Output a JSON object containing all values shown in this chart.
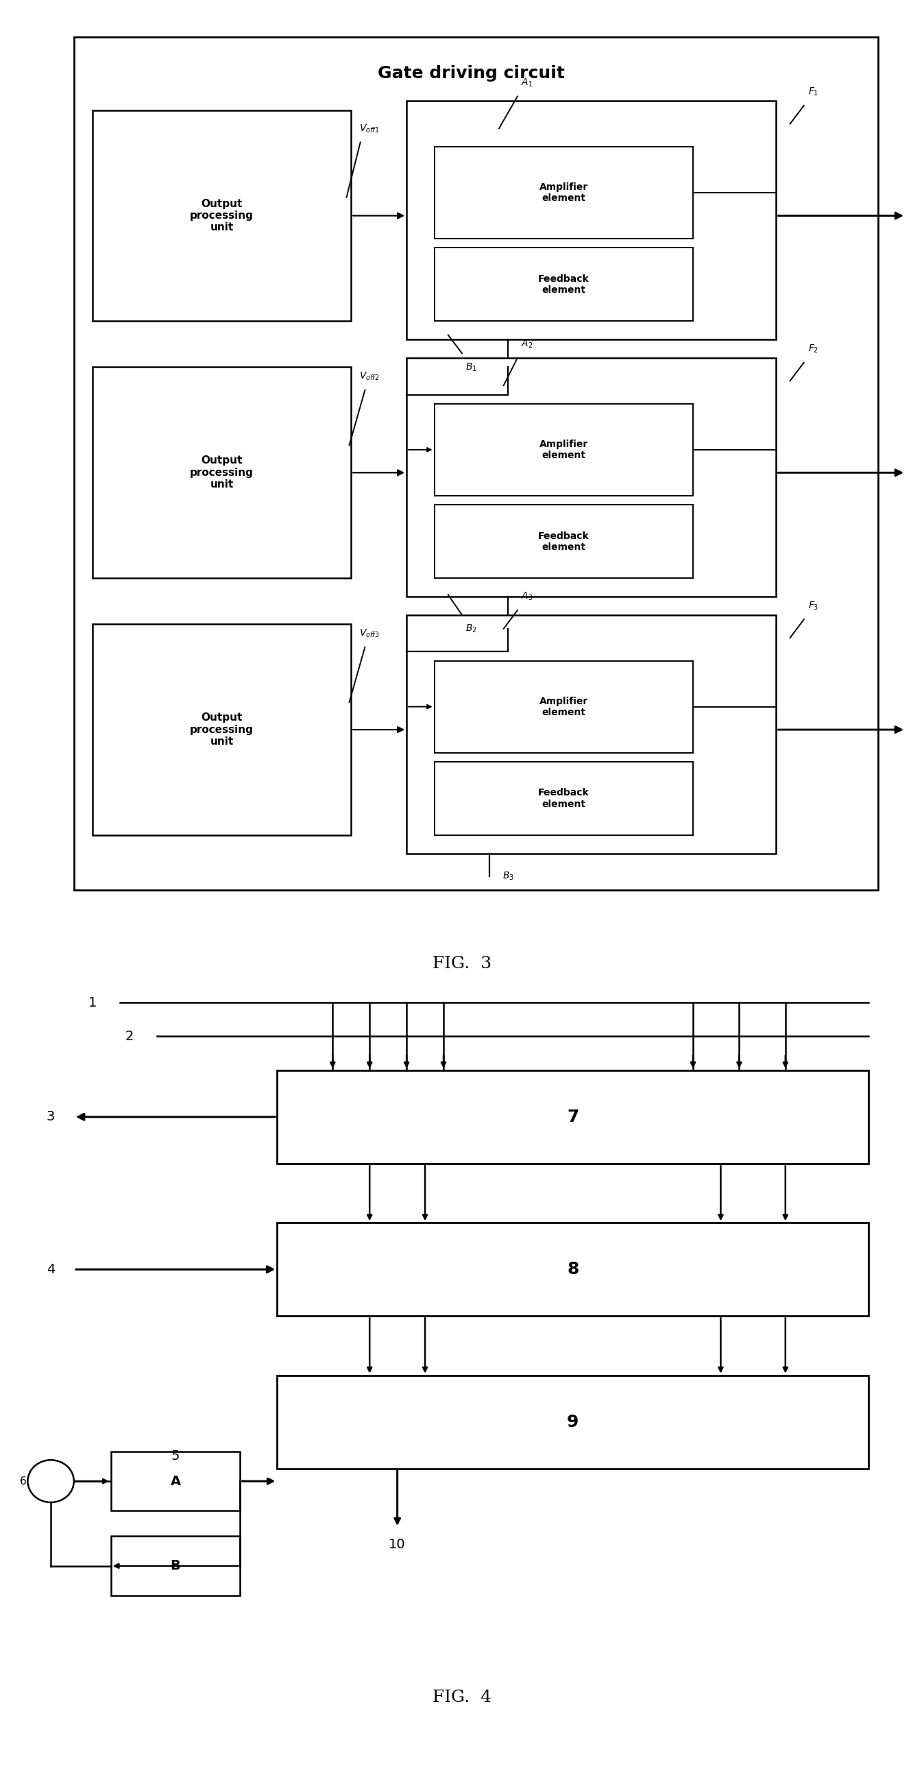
{
  "fig3_title": "Gate driving circuit",
  "fig3_label": "FIG.  3",
  "fig4_label": "FIG.  4",
  "bg_color": "#ffffff"
}
